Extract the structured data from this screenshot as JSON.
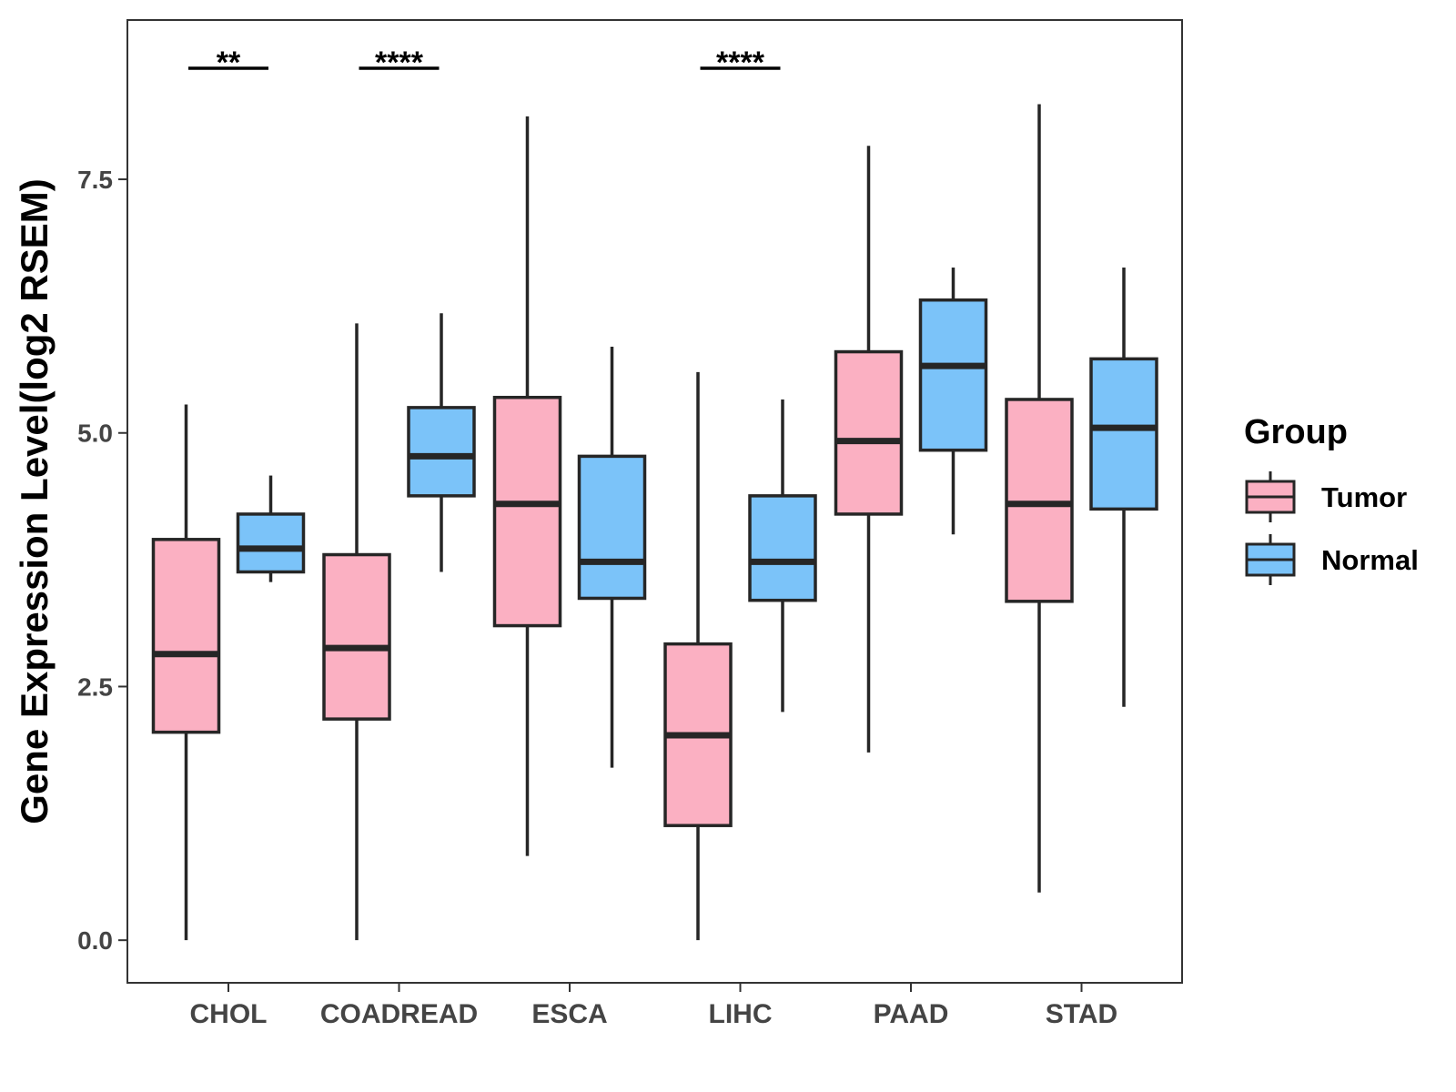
{
  "chart_data": {
    "type": "boxplot",
    "title": "",
    "xlabel": "",
    "ylabel": "Gene Expression Level(log2 RSEM)",
    "ylim": [
      -0.42,
      9.07
    ],
    "yticks": [
      0.0,
      2.5,
      5.0,
      7.5
    ],
    "ytick_labels": [
      "0.0",
      "2.5",
      "5.0",
      "7.5"
    ],
    "grid": false,
    "legend_position": "right",
    "legend_title": "Group",
    "categories": [
      "CHOL",
      "COADREAD",
      "ESCA",
      "LIHC",
      "PAAD",
      "STAD"
    ],
    "series": [
      {
        "name": "Tumor",
        "color": "#FBB0C2",
        "boxes": [
          {
            "min": 0.0,
            "q1": 2.05,
            "median": 2.82,
            "q3": 3.95,
            "max": 5.28
          },
          {
            "min": 0.0,
            "q1": 2.18,
            "median": 2.88,
            "q3": 3.8,
            "max": 6.08
          },
          {
            "min": 0.83,
            "q1": 3.1,
            "median": 4.3,
            "q3": 5.35,
            "max": 8.12
          },
          {
            "min": 0.0,
            "q1": 1.13,
            "median": 2.02,
            "q3": 2.92,
            "max": 5.6
          },
          {
            "min": 1.85,
            "q1": 4.2,
            "median": 4.92,
            "q3": 5.8,
            "max": 7.83
          },
          {
            "min": 0.47,
            "q1": 3.34,
            "median": 4.3,
            "q3": 5.33,
            "max": 8.24
          }
        ]
      },
      {
        "name": "Normal",
        "color": "#7BC3F9",
        "boxes": [
          {
            "min": 3.53,
            "q1": 3.63,
            "median": 3.86,
            "q3": 4.2,
            "max": 4.58
          },
          {
            "min": 3.63,
            "q1": 4.38,
            "median": 4.77,
            "q3": 5.25,
            "max": 6.18
          },
          {
            "min": 1.7,
            "q1": 3.37,
            "median": 3.73,
            "q3": 4.77,
            "max": 5.85
          },
          {
            "min": 2.25,
            "q1": 3.35,
            "median": 3.73,
            "q3": 4.38,
            "max": 5.33
          },
          {
            "min": 4.0,
            "q1": 4.83,
            "median": 5.66,
            "q3": 6.31,
            "max": 6.63
          },
          {
            "min": 2.3,
            "q1": 4.25,
            "median": 5.05,
            "q3": 5.73,
            "max": 6.63
          }
        ]
      }
    ],
    "annotations": [
      {
        "category": "CHOL",
        "label": "**"
      },
      {
        "category": "COADREAD",
        "label": "****"
      },
      {
        "category": "LIHC",
        "label": "****"
      }
    ],
    "stroke_color": "#262626"
  }
}
